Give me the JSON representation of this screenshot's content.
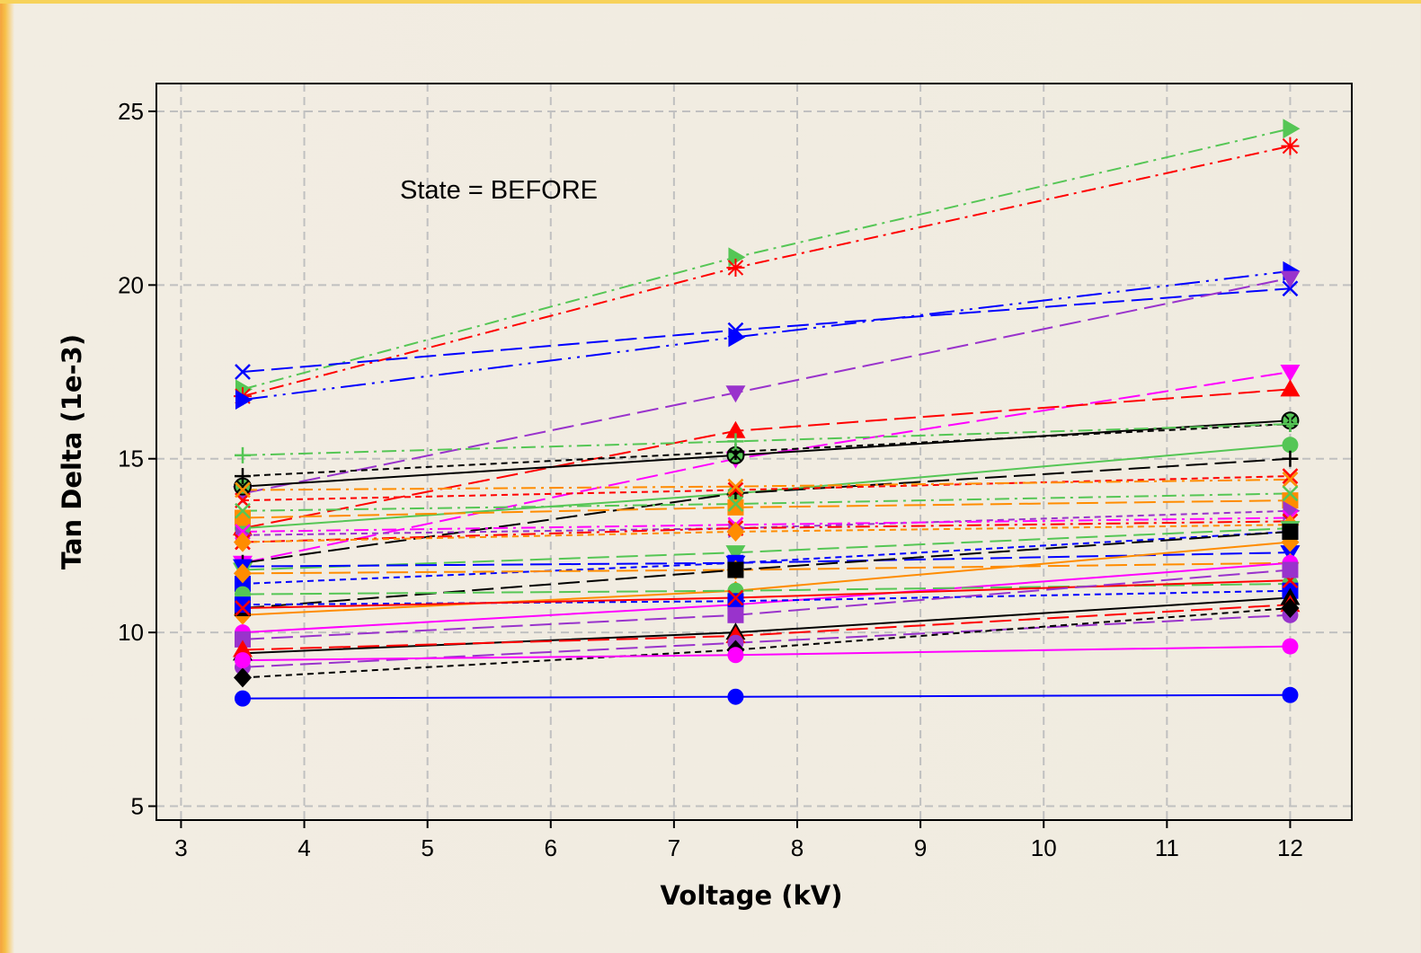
{
  "chart_data": {
    "type": "line",
    "xlabel": "Voltage (kV)",
    "ylabel": "Tan Delta (1e-3)",
    "annotation": "State = BEFORE",
    "xlim": [
      2.8,
      12.5
    ],
    "ylim": [
      4.6,
      25.8
    ],
    "x_ticks": [
      3,
      4,
      5,
      6,
      7,
      8,
      9,
      10,
      11,
      12
    ],
    "y_ticks": [
      5,
      10,
      15,
      20,
      25
    ],
    "grid": true,
    "x": [
      3.5,
      7.5,
      12
    ],
    "series": [
      {
        "color": "#55c655",
        "dash": "dashdot",
        "marker": "triR",
        "values": [
          17.0,
          20.8,
          24.5
        ]
      },
      {
        "color": "#ff0000",
        "dash": "dashdot",
        "marker": "star",
        "values": [
          16.8,
          20.5,
          24.0
        ]
      },
      {
        "color": "#0000ff",
        "dash": "longdashdot",
        "marker": "triR",
        "values": [
          16.7,
          18.5,
          20.4
        ]
      },
      {
        "color": "#0000ff",
        "dash": "longdash",
        "marker": "x",
        "values": [
          17.5,
          18.7,
          19.9
        ]
      },
      {
        "color": "#9933cc",
        "dash": "longdash",
        "marker": "triD",
        "values": [
          14.0,
          16.9,
          20.2
        ]
      },
      {
        "color": "#ff00ff",
        "dash": "longdash",
        "marker": "triD",
        "values": [
          12.0,
          15.0,
          17.5
        ]
      },
      {
        "color": "#ff0000",
        "dash": "longdash",
        "marker": "triU",
        "values": [
          13.0,
          15.8,
          17.0
        ]
      },
      {
        "color": "#000000",
        "dash": "solid",
        "marker": "circleX",
        "values": [
          14.2,
          15.1,
          16.1
        ]
      },
      {
        "color": "#000000",
        "dash": "dash",
        "marker": "plus",
        "values": [
          14.5,
          15.2,
          16.0
        ]
      },
      {
        "color": "#55c655",
        "dash": "dashdot",
        "marker": "plus",
        "values": [
          15.1,
          15.5,
          16.0
        ]
      },
      {
        "color": "#55c655",
        "dash": "solid",
        "marker": "circle",
        "values": [
          13.0,
          14.0,
          15.4
        ]
      },
      {
        "color": "#000000",
        "dash": "longdash",
        "marker": "plus",
        "values": [
          12.0,
          14.0,
          15.0
        ]
      },
      {
        "color": "#ff0000",
        "dash": "dash",
        "marker": "x",
        "values": [
          13.8,
          14.1,
          14.5
        ]
      },
      {
        "color": "#ff8c00",
        "dash": "dashdot",
        "marker": "x",
        "values": [
          14.1,
          14.2,
          14.4
        ]
      },
      {
        "color": "#ff8c00",
        "dash": "longdash",
        "marker": "square",
        "values": [
          13.3,
          13.6,
          13.8
        ]
      },
      {
        "color": "#55c655",
        "dash": "dashdot",
        "marker": "x",
        "values": [
          13.5,
          13.7,
          14.0
        ]
      },
      {
        "color": "#9933cc",
        "dash": "dash",
        "marker": "triR",
        "values": [
          12.8,
          13.0,
          13.5
        ]
      },
      {
        "color": "#ff00ff",
        "dash": "dashdot",
        "marker": "x",
        "values": [
          12.9,
          13.1,
          13.3
        ]
      },
      {
        "color": "#ff0000",
        "dash": "dashdot",
        "marker": "x",
        "values": [
          12.6,
          13.0,
          13.2
        ]
      },
      {
        "color": "#ff8c00",
        "dash": "dash",
        "marker": "diamond",
        "values": [
          12.6,
          12.9,
          13.1
        ]
      },
      {
        "color": "#55c655",
        "dash": "longdash",
        "marker": "triD",
        "values": [
          11.8,
          12.3,
          13.0
        ]
      },
      {
        "color": "#0000ff",
        "dash": "dash",
        "marker": "square",
        "values": [
          11.4,
          12.0,
          12.9
        ]
      },
      {
        "color": "#0000ff",
        "dash": "longdash",
        "marker": "triD",
        "values": [
          11.9,
          12.0,
          12.3
        ]
      },
      {
        "color": "#ff8c00",
        "dash": "longdash",
        "marker": "diamond",
        "values": [
          11.7,
          11.8,
          12.0
        ]
      },
      {
        "color": "#ff8c00",
        "dash": "solid",
        "marker": "diamond",
        "values": [
          10.5,
          11.2,
          12.6
        ]
      },
      {
        "color": "#000000",
        "dash": "longdash",
        "marker": "square",
        "values": [
          10.7,
          11.8,
          12.9
        ]
      },
      {
        "color": "#ff00ff",
        "dash": "solid",
        "marker": "circle",
        "values": [
          10.0,
          10.8,
          12.0
        ]
      },
      {
        "color": "#55c655",
        "dash": "longdash",
        "marker": "circle",
        "values": [
          11.1,
          11.2,
          11.4
        ]
      },
      {
        "color": "#0000ff",
        "dash": "dash",
        "marker": "square",
        "values": [
          10.8,
          10.9,
          11.2
        ]
      },
      {
        "color": "#ff0000",
        "dash": "solid",
        "marker": "x",
        "values": [
          10.7,
          11.0,
          11.5
        ]
      },
      {
        "color": "#9933cc",
        "dash": "longdash",
        "marker": "square",
        "values": [
          9.8,
          10.5,
          11.8
        ]
      },
      {
        "color": "#000000",
        "dash": "solid",
        "marker": "triU",
        "values": [
          9.4,
          10.0,
          11.0
        ]
      },
      {
        "color": "#ff0000",
        "dash": "longdash",
        "marker": "triU",
        "values": [
          9.5,
          9.9,
          10.8
        ]
      },
      {
        "color": "#9933cc",
        "dash": "longdash",
        "marker": "circle",
        "values": [
          9.0,
          9.7,
          10.5
        ]
      },
      {
        "color": "#000000",
        "dash": "dash",
        "marker": "diamond",
        "values": [
          8.7,
          9.5,
          10.7
        ]
      },
      {
        "color": "#ff00ff",
        "dash": "solid",
        "marker": "circle",
        "values": [
          9.2,
          9.35,
          9.6
        ]
      },
      {
        "color": "#0000ff",
        "dash": "solid",
        "marker": "circle",
        "values": [
          8.1,
          8.15,
          8.2
        ]
      }
    ]
  }
}
